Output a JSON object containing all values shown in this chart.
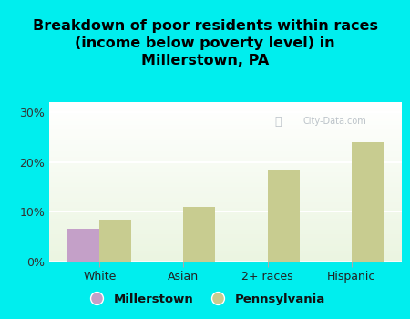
{
  "categories": [
    "White",
    "Asian",
    "2+ races",
    "Hispanic"
  ],
  "millerstown_values": [
    6.5,
    0,
    0,
    0
  ],
  "pennsylvania_values": [
    8.5,
    11.0,
    18.5,
    24.0
  ],
  "millerstown_color": "#c4a0c8",
  "pennsylvania_color": "#c8cc90",
  "background_color": "#00eeee",
  "title": "Breakdown of poor residents within races\n(income below poverty level) in\nMillerstown, PA",
  "title_fontsize": 11.5,
  "ylabel_ticks": [
    "0%",
    "10%",
    "20%",
    "30%"
  ],
  "ytick_values": [
    0,
    10,
    20,
    30
  ],
  "ylim": [
    0,
    32
  ],
  "bar_width": 0.38,
  "watermark": "City-Data.com"
}
